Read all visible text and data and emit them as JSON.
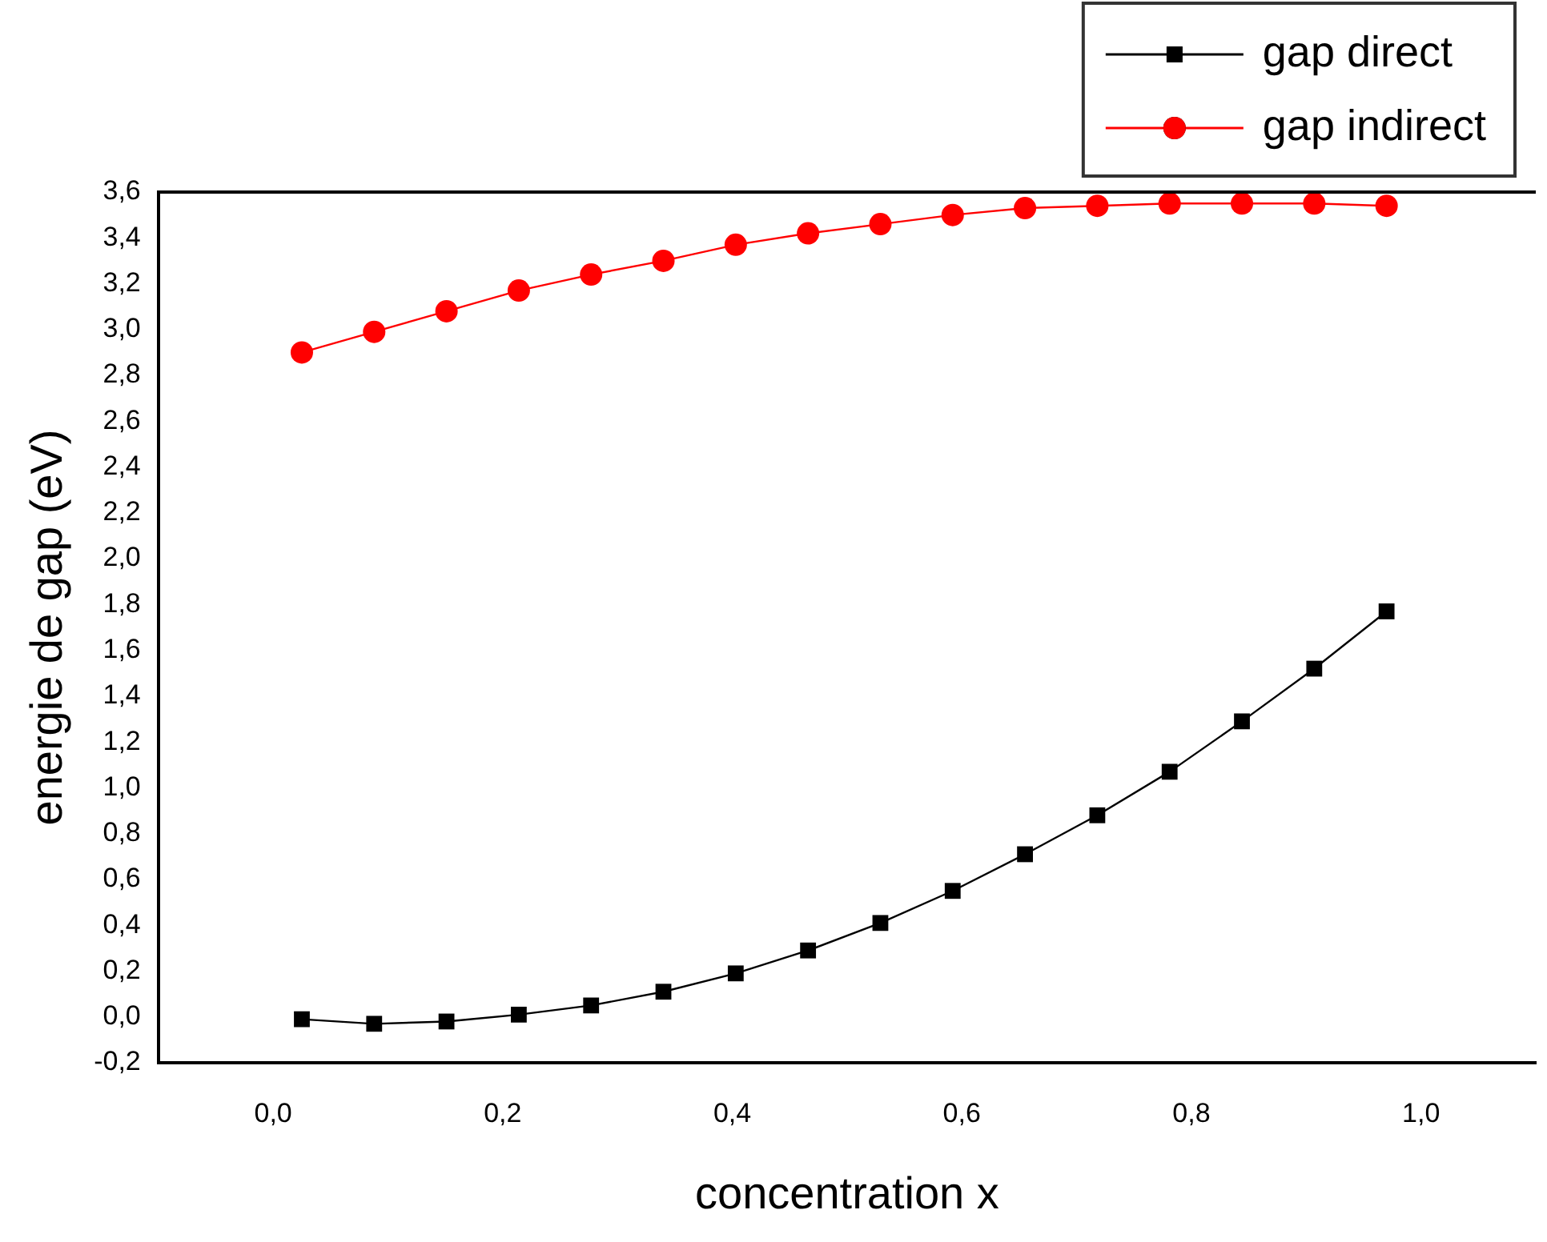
{
  "chart_data": {
    "type": "line",
    "xlabel": "concentration x",
    "ylabel": "energie de gap (eV)",
    "xlim": [
      -0.1,
      1.1
    ],
    "xticks": [
      {
        "value": 0,
        "label": "0,0"
      },
      {
        "value": 0.2,
        "label": "0,2"
      },
      {
        "value": 0.4,
        "label": "0,4"
      },
      {
        "value": 0.6,
        "label": "0,6"
      },
      {
        "value": 0.8,
        "label": "0,8"
      },
      {
        "value": 1,
        "label": "1,0"
      }
    ],
    "ylim": [
      -0.2,
      3.6
    ],
    "yticks": [
      {
        "value": -0.2,
        "label": "-0,2"
      },
      {
        "value": 0,
        "label": "0,0"
      },
      {
        "value": 0.2,
        "label": "0,2"
      },
      {
        "value": 0.4,
        "label": "0,4"
      },
      {
        "value": 0.6,
        "label": "0,6"
      },
      {
        "value": 0.8,
        "label": "0,8"
      },
      {
        "value": 1,
        "label": "1,0"
      },
      {
        "value": 1.2,
        "label": "1,2"
      },
      {
        "value": 1.4,
        "label": "1,4"
      },
      {
        "value": 1.6,
        "label": "1,6"
      },
      {
        "value": 1.8,
        "label": "1,8"
      },
      {
        "value": 2,
        "label": "2,0"
      },
      {
        "value": 2.2,
        "label": "2,2"
      },
      {
        "value": 2.4,
        "label": "2,4"
      },
      {
        "value": 2.6,
        "label": "2,6"
      },
      {
        "value": 2.8,
        "label": "2,8"
      },
      {
        "value": 3,
        "label": "3,0"
      },
      {
        "value": 3.2,
        "label": "3,2"
      },
      {
        "value": 3.4,
        "label": "3,4"
      },
      {
        "value": 3.6,
        "label": "3,6"
      }
    ],
    "x": [
      0.025,
      0.088,
      0.151,
      0.214,
      0.277,
      0.34,
      0.403,
      0.466,
      0.529,
      0.592,
      0.655,
      0.718,
      0.781,
      0.844,
      0.907,
      0.97
    ],
    "series": [
      {
        "name": "gap direct",
        "color": "#000000",
        "marker": "square",
        "values": [
          -0.01,
          -0.03,
          -0.02,
          0.01,
          0.05,
          0.11,
          0.19,
          0.29,
          0.41,
          0.55,
          0.71,
          0.88,
          1.07,
          1.29,
          1.52,
          1.77
        ]
      },
      {
        "name": "gap indirect",
        "color": "#ff0000",
        "marker": "circle",
        "values": [
          2.9,
          2.99,
          3.08,
          3.17,
          3.24,
          3.3,
          3.37,
          3.42,
          3.46,
          3.5,
          3.53,
          3.54,
          3.55,
          3.55,
          3.55,
          3.54
        ]
      }
    ],
    "grid": false,
    "legend": "top right"
  }
}
